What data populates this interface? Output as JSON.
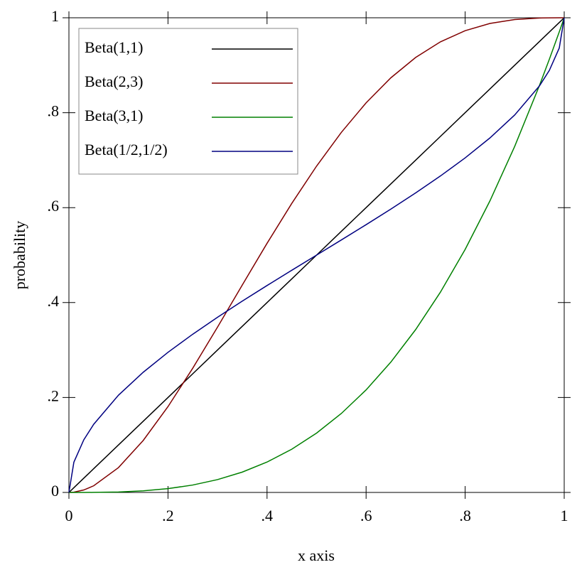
{
  "chart_data": {
    "type": "line",
    "xlabel": "x axis",
    "ylabel": "probability",
    "x": [
      0,
      0.01,
      0.03,
      0.05,
      0.1,
      0.15,
      0.2,
      0.25,
      0.3,
      0.35,
      0.4,
      0.45,
      0.5,
      0.55,
      0.6,
      0.65,
      0.7,
      0.75,
      0.8,
      0.85,
      0.9,
      0.95,
      0.97,
      0.99,
      1
    ],
    "series": [
      {
        "name": "Beta(1,1)",
        "color": "#000000",
        "values": [
          0,
          0.01,
          0.03,
          0.05,
          0.1,
          0.15,
          0.2,
          0.25,
          0.3,
          0.35,
          0.4,
          0.45,
          0.5,
          0.55,
          0.6,
          0.65,
          0.7,
          0.75,
          0.8,
          0.85,
          0.9,
          0.95,
          0.97,
          0.99,
          1
        ]
      },
      {
        "name": "Beta(2,3)",
        "color": "#800000",
        "values": [
          0,
          0.000592,
          0.005186,
          0.014019,
          0.0523,
          0.109519,
          0.1808,
          0.261719,
          0.3483,
          0.437019,
          0.5248,
          0.609019,
          0.6875,
          0.758519,
          0.8208,
          0.873519,
          0.9163,
          0.949219,
          0.9728,
          0.988019,
          0.9963,
          0.999519,
          0.99989,
          0.999996,
          1
        ]
      },
      {
        "name": "Beta(3,1)",
        "color": "#008000",
        "values": [
          0,
          1e-06,
          2.7e-05,
          0.000125,
          0.001,
          0.003375,
          0.008,
          0.015625,
          0.027,
          0.042875,
          0.064,
          0.091125,
          0.125,
          0.166375,
          0.216,
          0.274625,
          0.343,
          0.421875,
          0.512,
          0.614125,
          0.729,
          0.857375,
          0.912673,
          0.970299,
          1
        ]
      },
      {
        "name": "Beta(1/2,1/2)",
        "color": "#000080",
        "values": [
          0,
          0.063769,
          0.110825,
          0.143566,
          0.204833,
          0.253183,
          0.295167,
          0.333333,
          0.36901,
          0.403014,
          0.435906,
          0.468115,
          0.5,
          0.531885,
          0.564094,
          0.596986,
          0.63099,
          0.666667,
          0.704833,
          0.746817,
          0.795167,
          0.856434,
          0.889175,
          0.936231,
          1
        ]
      }
    ],
    "xlim": [
      0,
      1
    ],
    "ylim": [
      0,
      1
    ],
    "xticks": [
      0,
      {
        "value": 0.2,
        "label": ".2"
      },
      {
        "value": 0.4,
        "label": ".4"
      },
      {
        "value": 0.6,
        "label": ".6"
      },
      {
        "value": 0.8,
        "label": ".8"
      },
      1
    ],
    "yticks": [
      0,
      {
        "value": 0.2,
        "label": ".2"
      },
      {
        "value": 0.4,
        "label": ".4"
      },
      {
        "value": 0.6,
        "label": ".6"
      },
      {
        "value": 0.8,
        "label": ".8"
      },
      1
    ],
    "legend": "top-left"
  }
}
